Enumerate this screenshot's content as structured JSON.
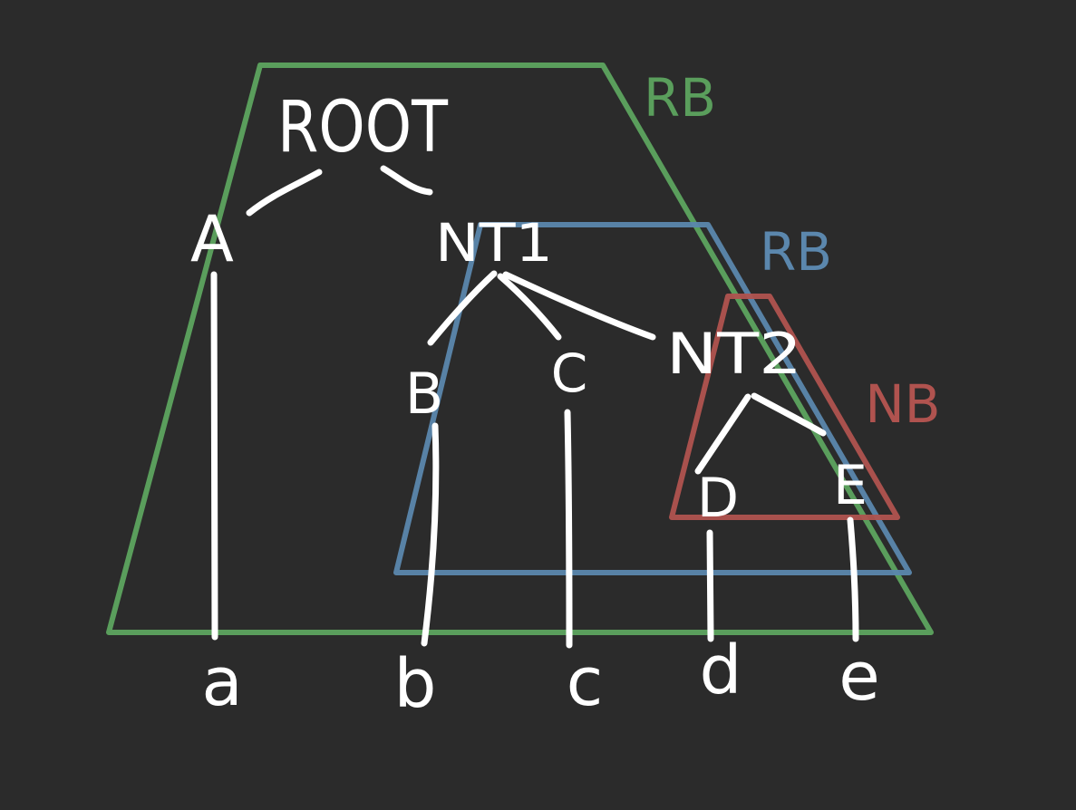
{
  "colors": {
    "background": "#2b2b2b",
    "ink": "#ffffff",
    "green": "#5a9e5c",
    "blue": "#5b87ad",
    "red": "#b0534f"
  },
  "tree": {
    "nodes": {
      "root": "ROOT",
      "a_node": "A",
      "nt1": "NT1",
      "b_node": "B",
      "c_node": "C",
      "nt2": "NT2",
      "d_node": "D",
      "e_node": "E"
    },
    "leaves": [
      "a",
      "b",
      "c",
      "d",
      "e"
    ]
  },
  "regions": [
    {
      "label": "RB",
      "color": "green"
    },
    {
      "label": "RB",
      "color": "blue"
    },
    {
      "label": "NB",
      "color": "red"
    }
  ]
}
